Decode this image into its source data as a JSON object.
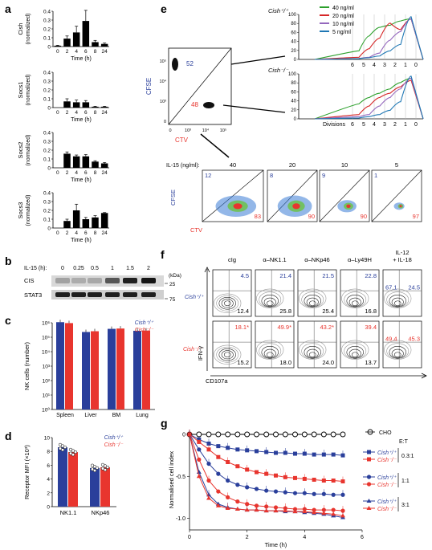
{
  "panel_letters": {
    "a": "a",
    "b": "b",
    "c": "c",
    "d": "d",
    "e": "e",
    "f": "f",
    "g": "g"
  },
  "panel_a": {
    "xlabel": "Time (h)",
    "xticks": [
      "0",
      "2",
      "4",
      "6",
      "8",
      "24"
    ],
    "charts": [
      {
        "ylabel": "Cish",
        "ysub": "(normalized)",
        "yticks": [
          "0",
          "0.1",
          "0.2",
          "0.3",
          "0.4"
        ]
      },
      {
        "ylabel": "Socs1",
        "ysub": "(normalized)",
        "yticks": [
          "0",
          "0.1",
          "0.2",
          "0.3",
          "0.4"
        ]
      },
      {
        "ylabel": "Socs2",
        "ysub": "(normalized)",
        "yticks": [
          "0",
          "0.1",
          "0.2",
          "0.3",
          "0.4"
        ]
      },
      {
        "ylabel": "Socs3",
        "ysub": "(normalized)",
        "yticks": [
          "0",
          "0.1",
          "0.2",
          "0.3",
          "0.4"
        ]
      }
    ]
  },
  "panel_b": {
    "header": "IL-15 (h):",
    "times": [
      "0",
      "0.25",
      "0.5",
      "1",
      "1.5",
      "2"
    ],
    "kda": "(kDa)",
    "rows": [
      {
        "label": "CIS",
        "marker": "25"
      },
      {
        "label": "STAT3",
        "marker": "75"
      }
    ]
  },
  "panel_c": {
    "ylabel": "NK cells (number)",
    "yticks": [
      "10⁶",
      "10⁵",
      "10⁴",
      "10³",
      "10²",
      "10¹",
      "10⁰"
    ],
    "legend": [
      "Cish⁺/⁺",
      "Cish⁻/⁻"
    ],
    "categories": [
      "Spleen",
      "Liver",
      "BM",
      "Lung"
    ]
  },
  "panel_d": {
    "ylabel": "Receptor MFI (×10³)",
    "yticks": [
      "0",
      "2",
      "4",
      "6",
      "8",
      "10"
    ],
    "legend": [
      "Cish⁺/⁺",
      "Cish⁻/⁻"
    ],
    "categories": [
      "NK1.1",
      "NKp46"
    ]
  },
  "panel_e": {
    "cfse": "CFSE",
    "ctv": "CTV",
    "dot_top": "52",
    "dot_bot": "48",
    "axis_ticks": [
      "0",
      "10³",
      "10⁴",
      "10⁵"
    ],
    "legend": [
      {
        "label": "40 ng/ml",
        "color": "#2ca02c"
      },
      {
        "label": "20 ng/ml",
        "color": "#d62728"
      },
      {
        "label": "10 ng/ml",
        "color": "#9467bd"
      },
      {
        "label": "5 ng/ml",
        "color": "#1f77b4"
      }
    ],
    "wt": "Cish⁺/⁺",
    "ko": "Cish⁻/⁻",
    "hist_yticks": [
      "0",
      "20",
      "40",
      "60",
      "80",
      "100"
    ],
    "divisions_label": "Divisions",
    "divisions": [
      "6",
      "5",
      "4",
      "3",
      "2",
      "1",
      "0"
    ],
    "il15_label": "IL-15 (ng/ml):",
    "conc": [
      "40",
      "20",
      "10",
      "5"
    ],
    "upper": [
      "12",
      "8",
      "9",
      "1"
    ],
    "lower": [
      "83",
      "90",
      "90",
      "97"
    ]
  },
  "panel_f": {
    "columns": [
      "cIg",
      "α–NK1.1",
      "α–NKp46",
      "α–Ly49H",
      "IL-12\n+ IL-18"
    ],
    "wt_label": "Cish⁺/⁺",
    "ko_label": "Cish⁻/⁻",
    "wt_top": [
      "4.5",
      "21.4",
      "21.5",
      "22.8",
      "67.1"
    ],
    "wt_bot": [
      "12.4",
      "25.8",
      "25.4",
      "16.8",
      "24.5"
    ],
    "ko_top": [
      "18.1*",
      "49.9*",
      "43.2*",
      "39.4",
      "49.4"
    ],
    "ko_bot": [
      "15.2",
      "18.0",
      "24.0",
      "13.7",
      "45.3"
    ],
    "ylabel": "IFN-γ",
    "xlabel": "CD107a"
  },
  "panel_g": {
    "ylabel": "Normalised cell index",
    "xlabel": "Time (h)",
    "yticks": [
      "0",
      "-0.5",
      "-1.0"
    ],
    "xticks": [
      "0",
      "2",
      "4",
      "6"
    ],
    "et_label": "E:T",
    "legend_cho": "CHO",
    "ratios": [
      "0.3:1",
      "1:1",
      "3:1"
    ],
    "wt": "Cish⁺/⁺",
    "ko": "Cish⁻/⁻"
  },
  "chart_data": [
    {
      "type": "bar",
      "title": "",
      "ylabel": "Cish (normalized)",
      "xlabel": "Time (h)",
      "categories": [
        "0",
        "2",
        "4",
        "6",
        "8",
        "24"
      ],
      "values": [
        0.01,
        0.09,
        0.16,
        0.29,
        0.05,
        0.03
      ],
      "errors": [
        0.005,
        0.03,
        0.07,
        0.12,
        0.02,
        0.01
      ],
      "ylim": [
        0,
        0.4
      ]
    },
    {
      "type": "bar",
      "title": "",
      "ylabel": "Socs1 (normalized)",
      "xlabel": "Time (h)",
      "categories": [
        "0",
        "2",
        "4",
        "6",
        "8",
        "24"
      ],
      "values": [
        0.0,
        0.07,
        0.06,
        0.06,
        0.01,
        0.01
      ],
      "errors": [
        0,
        0.03,
        0.025,
        0.02,
        0.005,
        0.005
      ],
      "ylim": [
        0,
        0.4
      ]
    },
    {
      "type": "bar",
      "title": "",
      "ylabel": "Socs2 (normalized)",
      "xlabel": "Time (h)",
      "categories": [
        "0",
        "2",
        "4",
        "6",
        "8",
        "24"
      ],
      "values": [
        0.0,
        0.16,
        0.13,
        0.13,
        0.07,
        0.05
      ],
      "errors": [
        0,
        0.02,
        0.015,
        0.02,
        0.01,
        0.01
      ],
      "ylim": [
        0,
        0.4
      ]
    },
    {
      "type": "bar",
      "title": "",
      "ylabel": "Socs3 (normalized)",
      "xlabel": "Time (h)",
      "categories": [
        "0",
        "2",
        "4",
        "6",
        "8",
        "24"
      ],
      "values": [
        0.0,
        0.08,
        0.2,
        0.1,
        0.12,
        0.17
      ],
      "errors": [
        0,
        0.02,
        0.07,
        0.02,
        0.02,
        0.005
      ],
      "ylim": [
        0,
        0.4
      ]
    },
    {
      "type": "bar",
      "title": "",
      "ylabel": "NK cells (number)",
      "log": true,
      "categories": [
        "Spleen",
        "Liver",
        "BM",
        "Lung"
      ],
      "series": [
        {
          "name": "Cish⁺/⁺",
          "values": [
            1100000,
            230000,
            380000,
            280000
          ],
          "color": "#2a3f9b"
        },
        {
          "name": "Cish⁻/⁻",
          "values": [
            950000,
            260000,
            400000,
            290000
          ],
          "color": "#e8352e"
        }
      ],
      "ylim": [
        1,
        10000000
      ]
    },
    {
      "type": "bar",
      "title": "",
      "ylabel": "Receptor MFI (×10³)",
      "categories": [
        "NK1.1",
        "NKp46"
      ],
      "series": [
        {
          "name": "Cish⁺/⁺",
          "values": [
            8.6,
            5.6
          ],
          "color": "#2a3f9b"
        },
        {
          "name": "Cish⁻/⁻",
          "values": [
            7.9,
            5.7
          ],
          "color": "#e8352e"
        }
      ],
      "ylim": [
        0,
        10
      ]
    },
    {
      "type": "line",
      "title": "",
      "ylabel": "Normalised cell index",
      "xlabel": "Time (h)",
      "xlim": [
        0,
        6
      ],
      "ylim": [
        -1.1,
        0.05
      ],
      "x": [
        0,
        0.33,
        0.67,
        1,
        1.33,
        1.67,
        2,
        2.33,
        2.67,
        3,
        3.33,
        3.67,
        4,
        4.33,
        4.67,
        5,
        5.33
      ],
      "series": [
        {
          "name": "CHO",
          "values": [
            0,
            0,
            0,
            0,
            0,
            0,
            0,
            0,
            0,
            0,
            0,
            0,
            0,
            0,
            0,
            0,
            0
          ],
          "color": "#000",
          "marker": "circle-open"
        },
        {
          "name": "Cish⁺/⁺ 0.3:1",
          "values": [
            0,
            -0.06,
            -0.11,
            -0.14,
            -0.16,
            -0.18,
            -0.19,
            -0.2,
            -0.21,
            -0.22,
            -0.22,
            -0.23,
            -0.23,
            -0.24,
            -0.24,
            -0.24,
            -0.25
          ],
          "color": "#2a3f9b",
          "marker": "square"
        },
        {
          "name": "Cish⁻/⁻ 0.3:1",
          "values": [
            0,
            -0.09,
            -0.18,
            -0.27,
            -0.33,
            -0.38,
            -0.42,
            -0.45,
            -0.47,
            -0.49,
            -0.51,
            -0.52,
            -0.53,
            -0.54,
            -0.55,
            -0.55,
            -0.56
          ],
          "color": "#e8352e",
          "marker": "square"
        },
        {
          "name": "Cish⁺/⁺ 1:1",
          "values": [
            0,
            -0.18,
            -0.35,
            -0.47,
            -0.55,
            -0.6,
            -0.63,
            -0.65,
            -0.67,
            -0.68,
            -0.69,
            -0.7,
            -0.7,
            -0.71,
            -0.71,
            -0.72,
            -0.72
          ],
          "color": "#2a3f9b",
          "marker": "circle"
        },
        {
          "name": "Cish⁻/⁻ 1:1",
          "values": [
            0,
            -0.3,
            -0.55,
            -0.68,
            -0.75,
            -0.8,
            -0.83,
            -0.85,
            -0.86,
            -0.87,
            -0.88,
            -0.89,
            -0.89,
            -0.9,
            -0.9,
            -0.9,
            -0.91
          ],
          "color": "#e8352e",
          "marker": "circle"
        },
        {
          "name": "Cish⁺/⁺ 3:1",
          "values": [
            0,
            -0.45,
            -0.72,
            -0.83,
            -0.87,
            -0.89,
            -0.9,
            -0.9,
            -0.91,
            -0.91,
            -0.92,
            -0.92,
            -0.93,
            -0.94,
            -0.95,
            -0.97,
            -0.99
          ],
          "color": "#2a3f9b",
          "marker": "triangle"
        },
        {
          "name": "Cish⁻/⁻ 3:1",
          "values": [
            0,
            -0.5,
            -0.76,
            -0.85,
            -0.88,
            -0.89,
            -0.9,
            -0.9,
            -0.91,
            -0.91,
            -0.91,
            -0.92,
            -0.92,
            -0.93,
            -0.94,
            -0.95,
            -0.97
          ],
          "color": "#e8352e",
          "marker": "triangle"
        }
      ]
    }
  ]
}
